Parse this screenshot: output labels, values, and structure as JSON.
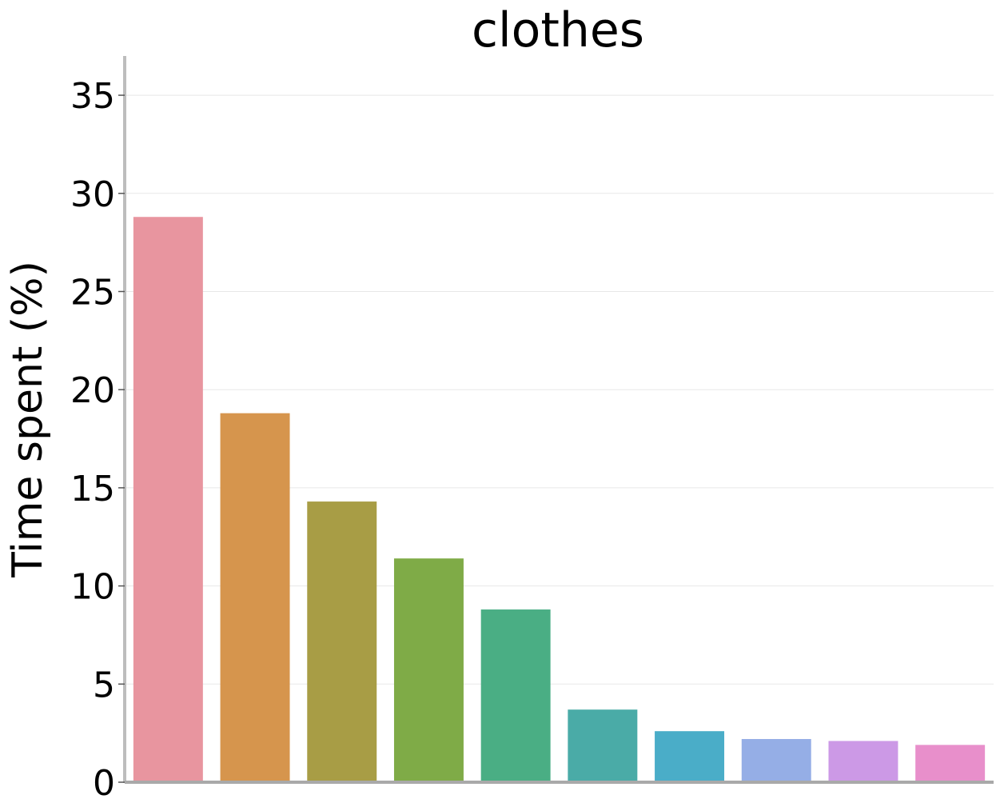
{
  "chart_data": {
    "type": "bar",
    "title": "clothes",
    "xlabel": "",
    "ylabel": "Time spent (%)",
    "ylim": [
      0,
      37
    ],
    "yticks": [
      0,
      5,
      10,
      15,
      20,
      25,
      30,
      35
    ],
    "categories": [
      "",
      "",
      "",
      "",
      "",
      "",
      "",
      "",
      "",
      ""
    ],
    "values": [
      28.8,
      18.8,
      14.3,
      11.4,
      8.8,
      3.7,
      2.6,
      2.2,
      2.1,
      1.9
    ],
    "colors": [
      "#e8959f",
      "#d6954d",
      "#a89d45",
      "#7fab47",
      "#4aae84",
      "#4aaba7",
      "#4aadc8",
      "#95aee6",
      "#cc99e6",
      "#e88fcb"
    ],
    "grid": "horizontal",
    "legend": "none"
  }
}
